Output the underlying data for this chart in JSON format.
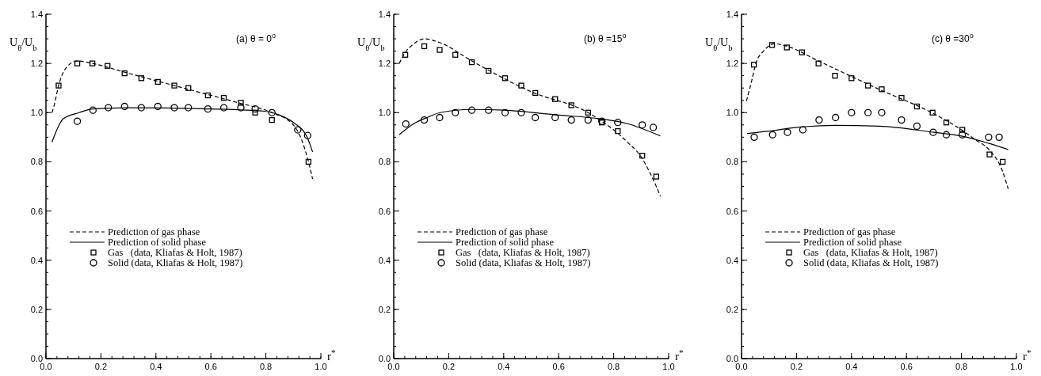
{
  "chart_data": [
    {
      "type": "line",
      "title": "(a) θ = 0$^{o}$",
      "xlabel": "r$^{*}$",
      "ylabel": "U$_{θ}$/U$_{b}$",
      "xlim": [
        0,
        1
      ],
      "ylim": [
        0,
        1.4
      ],
      "xticks": [
        {
          "value": 0,
          "label": "0.0"
        },
        {
          "value": 0.2,
          "label": "0.2"
        },
        {
          "value": 0.4,
          "label": "0.4"
        },
        {
          "value": 0.6,
          "label": "0.6"
        },
        {
          "value": 0.8,
          "label": "0.8"
        },
        {
          "value": 1,
          "label": "1.0"
        }
      ],
      "yticks": [
        {
          "value": 0,
          "label": "0.0"
        },
        {
          "value": 0.2,
          "label": "0.2"
        },
        {
          "value": 0.4,
          "label": "0.4"
        },
        {
          "value": 0.6,
          "label": "0.6"
        },
        {
          "value": 0.8,
          "label": "0.8"
        },
        {
          "value": 1,
          "label": "1.0"
        },
        {
          "value": 1.2,
          "label": "1.2"
        },
        {
          "value": 1.4,
          "label": "1.4"
        }
      ],
      "legend": "bottom",
      "grid": false,
      "series": [
        {
          "name": "Prediction of gas phase",
          "type": "line",
          "line_style": "dashed",
          "marker": "none",
          "color": "#000000",
          "x": [
            0.022,
            0.03,
            0.046,
            0.072,
            0.114,
            0.169,
            0.3,
            0.5,
            0.7,
            0.822,
            0.9,
            0.93,
            0.955,
            0.97
          ],
          "values": [
            1.0,
            1.03,
            1.11,
            1.18,
            1.21,
            1.2,
            1.16,
            1.1,
            1.04,
            1.0,
            0.95,
            0.89,
            0.8,
            0.73
          ]
        },
        {
          "name": "Prediction of solid phase",
          "type": "line",
          "line_style": "solid",
          "marker": "none",
          "color": "#000000",
          "x": [
            0.022,
            0.063,
            0.121,
            0.169,
            0.3,
            0.6,
            0.8,
            0.85,
            0.9,
            0.95,
            0.97
          ],
          "values": [
            0.88,
            0.975,
            1.0,
            1.015,
            1.02,
            1.015,
            1.005,
            0.99,
            0.96,
            0.9,
            0.84
          ]
        },
        {
          "name": "Gas   (data, Kliafas & Holt, 1987)",
          "type": "scatter",
          "marker": "square",
          "color": "#000000",
          "x": [
            0.046,
            0.114,
            0.169,
            0.224,
            0.286,
            0.347,
            0.407,
            0.467,
            0.518,
            0.589,
            0.647,
            0.709,
            0.761,
            0.822,
            0.955
          ],
          "values": [
            1.11,
            1.2,
            1.2,
            1.19,
            1.16,
            1.14,
            1.125,
            1.11,
            1.1,
            1.07,
            1.06,
            1.04,
            1.0,
            0.97,
            0.8
          ]
        },
        {
          "name": "Solid (data, Kliafas & Holt, 1987)",
          "type": "scatter",
          "marker": "circle",
          "color": "#000000",
          "x": [
            0.114,
            0.171,
            0.227,
            0.286,
            0.347,
            0.407,
            0.467,
            0.518,
            0.589,
            0.647,
            0.709,
            0.761,
            0.822,
            0.916,
            0.952
          ],
          "values": [
            0.965,
            1.01,
            1.02,
            1.025,
            1.02,
            1.025,
            1.02,
            1.02,
            1.015,
            1.02,
            1.02,
            1.015,
            1.0,
            0.93,
            0.907
          ]
        }
      ]
    },
    {
      "type": "line",
      "title": "(b) θ =15$^{o}$",
      "xlabel": "r$^{*}$",
      "ylabel": "U$_{θ}$/U$_{b}$",
      "xlim": [
        0,
        1
      ],
      "ylim": [
        0,
        1.4
      ],
      "xticks": [
        {
          "value": 0,
          "label": "0.0"
        },
        {
          "value": 0.2,
          "label": "0.2"
        },
        {
          "value": 0.4,
          "label": "0.4"
        },
        {
          "value": 0.6,
          "label": "0.6"
        },
        {
          "value": 0.8,
          "label": "0.8"
        },
        {
          "value": 1,
          "label": "1.0"
        }
      ],
      "yticks": [
        {
          "value": 0,
          "label": "0.0"
        },
        {
          "value": 0.2,
          "label": "0.2"
        },
        {
          "value": 0.4,
          "label": "0.4"
        },
        {
          "value": 0.6,
          "label": "0.6"
        },
        {
          "value": 0.8,
          "label": "0.8"
        },
        {
          "value": 1,
          "label": "1.0"
        },
        {
          "value": 1.2,
          "label": "1.2"
        },
        {
          "value": 1.4,
          "label": "1.4"
        }
      ],
      "legend": "bottom",
      "grid": false,
      "series": [
        {
          "name": "Prediction of gas phase",
          "type": "line",
          "line_style": "dashed",
          "marker": "none",
          "color": "#000000",
          "x": [
            0.02,
            0.039,
            0.073,
            0.111,
            0.167,
            0.284,
            0.5,
            0.707,
            0.757,
            0.8,
            0.85,
            0.9,
            0.93,
            0.955,
            0.97
          ],
          "values": [
            1.2,
            1.24,
            1.28,
            1.3,
            1.285,
            1.21,
            1.085,
            1.0,
            0.965,
            0.93,
            0.88,
            0.82,
            0.76,
            0.7,
            0.66
          ]
        },
        {
          "name": "Prediction of solid phase",
          "type": "line",
          "line_style": "solid",
          "marker": "none",
          "color": "#000000",
          "x": [
            0.02,
            0.073,
            0.121,
            0.169,
            0.284,
            0.4,
            0.6,
            0.75,
            0.85,
            0.97
          ],
          "values": [
            0.91,
            0.955,
            0.98,
            1.0,
            1.013,
            1.01,
            0.99,
            0.975,
            0.955,
            0.905
          ]
        },
        {
          "name": "Gas   (data, Kliafas & Holt, 1987)",
          "type": "scatter",
          "marker": "square",
          "color": "#000000",
          "x": [
            0.042,
            0.111,
            0.167,
            0.224,
            0.284,
            0.345,
            0.405,
            0.464,
            0.515,
            0.587,
            0.646,
            0.707,
            0.757,
            0.815,
            0.904,
            0.955
          ],
          "values": [
            1.235,
            1.27,
            1.255,
            1.235,
            1.205,
            1.17,
            1.14,
            1.11,
            1.08,
            1.055,
            1.03,
            1.0,
            0.96,
            0.925,
            0.825,
            0.74
          ]
        },
        {
          "name": "Solid (data, Kliafas & Holt, 1987)",
          "type": "scatter",
          "marker": "circle",
          "color": "#000000",
          "x": [
            0.044,
            0.111,
            0.167,
            0.224,
            0.284,
            0.345,
            0.405,
            0.464,
            0.515,
            0.587,
            0.646,
            0.707,
            0.757,
            0.815,
            0.904,
            0.944
          ],
          "values": [
            0.954,
            0.97,
            0.98,
            1.0,
            1.01,
            1.01,
            1.0,
            1.0,
            0.98,
            0.98,
            0.97,
            0.97,
            0.965,
            0.96,
            0.95,
            0.94
          ]
        }
      ]
    },
    {
      "type": "line",
      "title": "(c) θ =30$^{o}$",
      "xlabel": "r$^{*}$",
      "ylabel": "U$_{θ}$/U$_{b}$",
      "xlim": [
        0,
        1
      ],
      "ylim": [
        0,
        1.4
      ],
      "xticks": [
        {
          "value": 0,
          "label": "0.0"
        },
        {
          "value": 0.2,
          "label": "0.2"
        },
        {
          "value": 0.4,
          "label": "0.4"
        },
        {
          "value": 0.6,
          "label": "0.6"
        },
        {
          "value": 0.8,
          "label": "0.8"
        },
        {
          "value": 1,
          "label": "1.0"
        }
      ],
      "yticks": [
        {
          "value": 0,
          "label": "0.0"
        },
        {
          "value": 0.2,
          "label": "0.2"
        },
        {
          "value": 0.4,
          "label": "0.4"
        },
        {
          "value": 0.6,
          "label": "0.6"
        },
        {
          "value": 0.8,
          "label": "0.8"
        },
        {
          "value": 1,
          "label": "1.0"
        },
        {
          "value": 1.2,
          "label": "1.2"
        },
        {
          "value": 1.4,
          "label": "1.4"
        }
      ],
      "legend": "bottom",
      "grid": false,
      "series": [
        {
          "name": "Prediction of gas phase",
          "type": "line",
          "line_style": "dashed",
          "marker": "none",
          "color": "#000000",
          "x": [
            0.018,
            0.037,
            0.052,
            0.08,
            0.119,
            0.165,
            0.28,
            0.5,
            0.7,
            0.8,
            0.85,
            0.9,
            0.95,
            0.97
          ],
          "values": [
            1.047,
            1.13,
            1.2,
            1.25,
            1.28,
            1.27,
            1.21,
            1.095,
            0.995,
            0.93,
            0.89,
            0.85,
            0.76,
            0.69
          ]
        },
        {
          "name": "Prediction of solid phase",
          "type": "line",
          "line_style": "solid",
          "marker": "none",
          "color": "#000000",
          "x": [
            0.02,
            0.1,
            0.2,
            0.34,
            0.5,
            0.7,
            0.8,
            0.9,
            0.97
          ],
          "values": [
            0.915,
            0.925,
            0.94,
            0.948,
            0.945,
            0.92,
            0.905,
            0.875,
            0.85
          ]
        },
        {
          "name": "Gas   (data, Kliafas & Holt, 1987)",
          "type": "scatter",
          "marker": "square",
          "color": "#000000",
          "x": [
            0.045,
            0.111,
            0.165,
            0.22,
            0.28,
            0.34,
            0.4,
            0.46,
            0.51,
            0.582,
            0.638,
            0.695,
            0.745,
            0.803,
            0.902,
            0.95
          ],
          "values": [
            1.195,
            1.275,
            1.265,
            1.245,
            1.2,
            1.15,
            1.14,
            1.11,
            1.095,
            1.06,
            1.025,
            1.0,
            0.96,
            0.93,
            0.83,
            0.8
          ]
        },
        {
          "name": "Solid (data, Kliafas & Holt, 1987)",
          "type": "scatter",
          "marker": "circle",
          "color": "#000000",
          "x": [
            0.046,
            0.113,
            0.167,
            0.223,
            0.282,
            0.342,
            0.4,
            0.46,
            0.51,
            0.582,
            0.638,
            0.697,
            0.745,
            0.803,
            0.899,
            0.937
          ],
          "values": [
            0.9,
            0.91,
            0.92,
            0.93,
            0.97,
            0.98,
            1.0,
            1.0,
            1.0,
            0.97,
            0.945,
            0.92,
            0.91,
            0.91,
            0.9,
            0.9
          ]
        }
      ]
    }
  ]
}
